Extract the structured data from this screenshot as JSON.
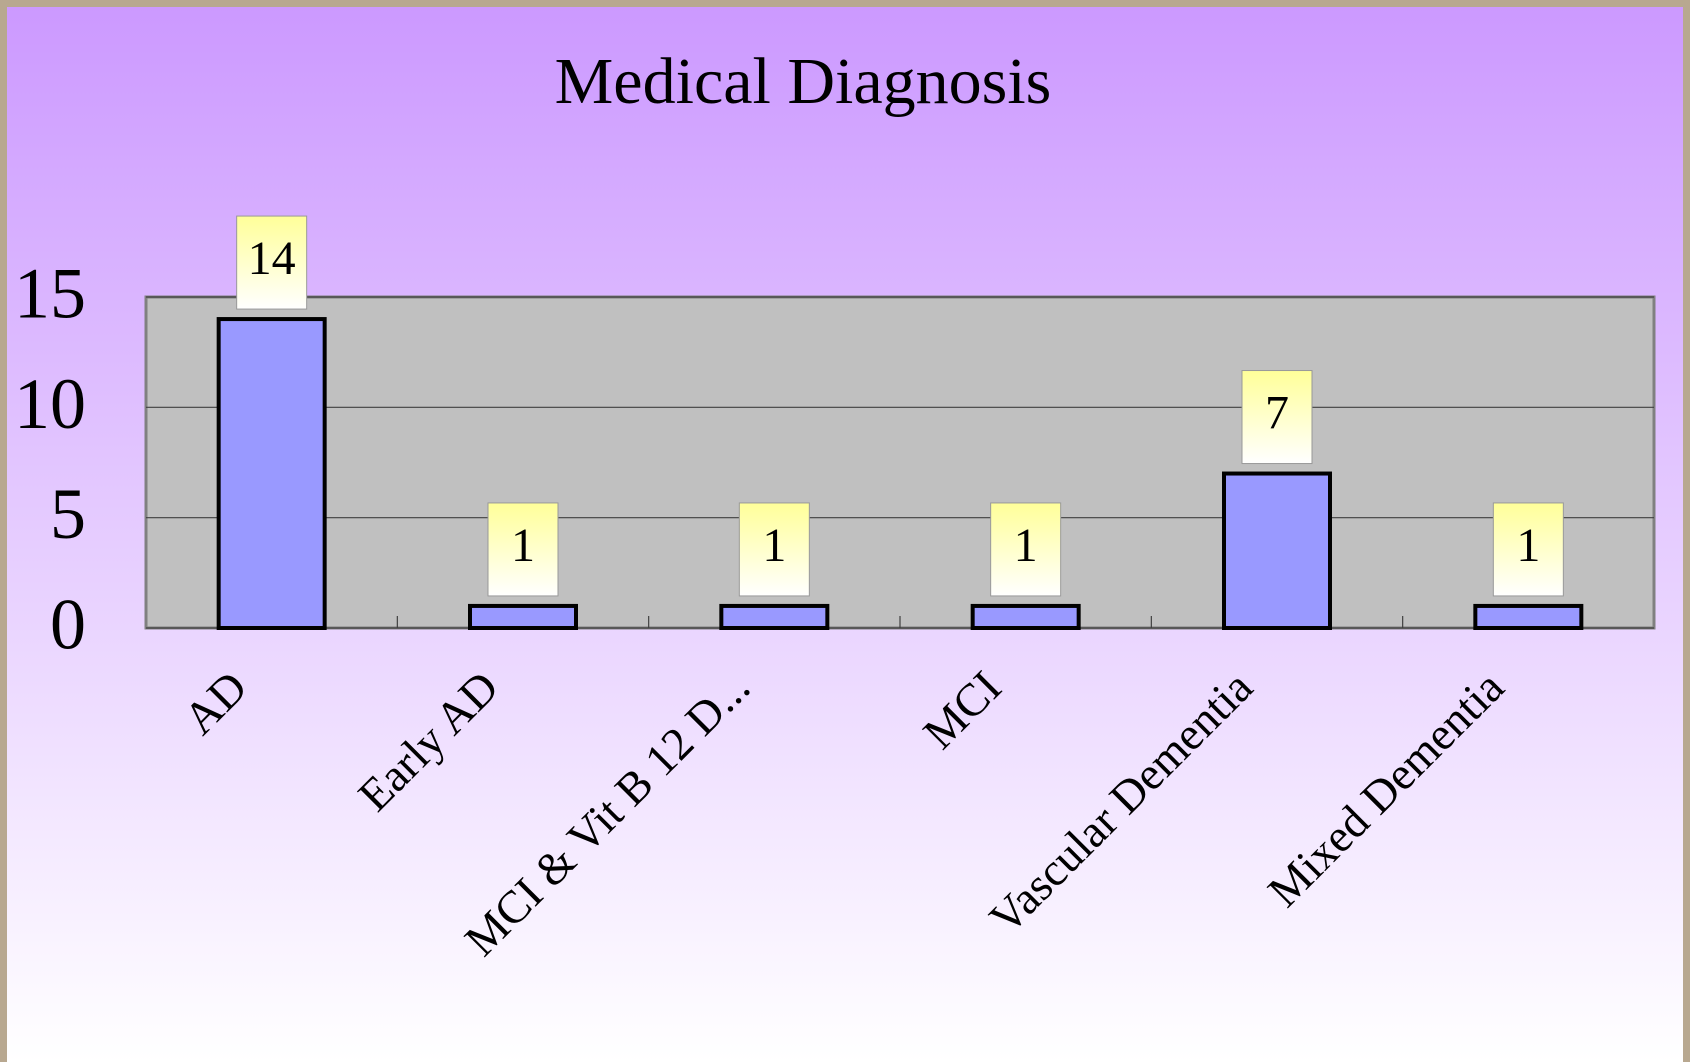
{
  "chart_data": {
    "type": "bar",
    "title": "Medical Diagnosis",
    "categories": [
      "AD",
      "Early AD",
      "MCI & Vit B 12 D...",
      "MCI",
      "Vascular Dementia",
      "Mixed Dementia"
    ],
    "values": [
      14,
      1,
      1,
      1,
      7,
      1
    ],
    "color": "#9999ff",
    "ylim": [
      0,
      15
    ],
    "yticks": [
      0,
      5,
      10,
      15
    ],
    "grid": true
  }
}
